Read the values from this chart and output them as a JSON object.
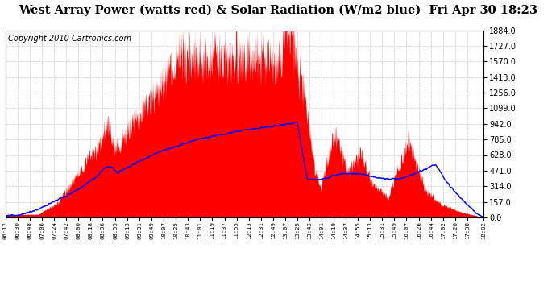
{
  "title_display": "West Array Power (watts red) & Solar Radiation (W/m2 blue)  Fri Apr 30 18:23",
  "copyright": "Copyright 2010 Cartronics.com",
  "yticks": [
    0.0,
    157.0,
    314.0,
    471.0,
    628.0,
    785.0,
    942.0,
    1099.0,
    1256.0,
    1413.0,
    1570.0,
    1727.0,
    1884.0
  ],
  "ymax": 1884.0,
  "ymin": 0.0,
  "red_color": "#ff0000",
  "blue_color": "#0000ff",
  "bg_color": "#ffffff",
  "grid_color": "#c8c8c8",
  "title_fontsize": 10.5,
  "copyright_fontsize": 7,
  "xtick_labels": [
    "06:12",
    "06:30",
    "06:48",
    "07:06",
    "07:24",
    "07:42",
    "08:00",
    "08:18",
    "08:36",
    "08:55",
    "09:13",
    "09:31",
    "09:49",
    "10:07",
    "10:25",
    "10:43",
    "11:01",
    "11:19",
    "11:37",
    "11:55",
    "12:13",
    "12:31",
    "12:49",
    "13:07",
    "13:25",
    "13:43",
    "14:01",
    "14:19",
    "14:37",
    "14:55",
    "15:13",
    "15:31",
    "15:49",
    "16:07",
    "16:26",
    "16:44",
    "17:02",
    "17:20",
    "17:38",
    "18:02"
  ]
}
